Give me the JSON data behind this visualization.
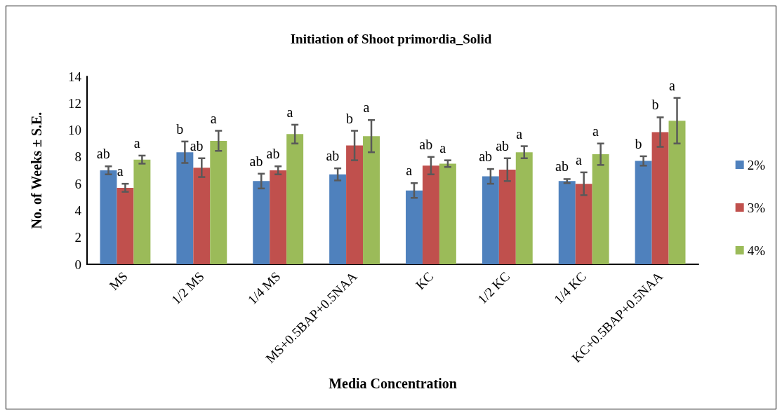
{
  "chart_data": {
    "type": "bar",
    "title": "Initiation of Shoot primordia_Solid",
    "xlabel": "Media Concentration",
    "ylabel": "No. of Weeks ± S.E.",
    "categories": [
      "MS",
      "1/2 MS",
      "1/4 MS",
      "MS+0.5BAP+0.5NAA",
      "KC",
      "1/2 KC",
      "1/4 KC",
      "KC+0.5BAP+0.5NAA"
    ],
    "series": [
      {
        "name": "2%",
        "color": "#4f81bd",
        "values": [
          7.0,
          8.35,
          6.2,
          6.7,
          5.5,
          6.55,
          6.2,
          7.7
        ],
        "errors": [
          0.3,
          0.8,
          0.55,
          0.45,
          0.55,
          0.55,
          0.15,
          0.35
        ],
        "value_labels": [
          "ab",
          "b",
          "ab",
          "ab",
          "a",
          "ab",
          "ab",
          "b"
        ]
      },
      {
        "name": "3%",
        "color": "#c0504d",
        "values": [
          5.7,
          7.2,
          7.0,
          8.85,
          7.35,
          7.05,
          6.0,
          9.85
        ],
        "errors": [
          0.3,
          0.7,
          0.3,
          1.1,
          0.65,
          0.85,
          0.85,
          1.1
        ],
        "value_labels": [
          "a",
          "ab",
          "ab",
          "b",
          "ab",
          "ab",
          "a",
          "b"
        ]
      },
      {
        "name": "4%",
        "color": "#9bbb59",
        "values": [
          7.8,
          9.2,
          9.7,
          9.55,
          7.5,
          8.35,
          8.2,
          10.7
        ],
        "errors": [
          0.3,
          0.75,
          0.7,
          1.2,
          0.25,
          0.45,
          0.8,
          1.7
        ],
        "value_labels": [
          "a",
          "a",
          "a",
          "a",
          "a",
          "a",
          "a",
          "a"
        ]
      }
    ],
    "ylim": [
      0,
      14
    ],
    "yticks": [
      0,
      2,
      4,
      6,
      8,
      10,
      12,
      14
    ],
    "grid": false,
    "legend": "right"
  }
}
